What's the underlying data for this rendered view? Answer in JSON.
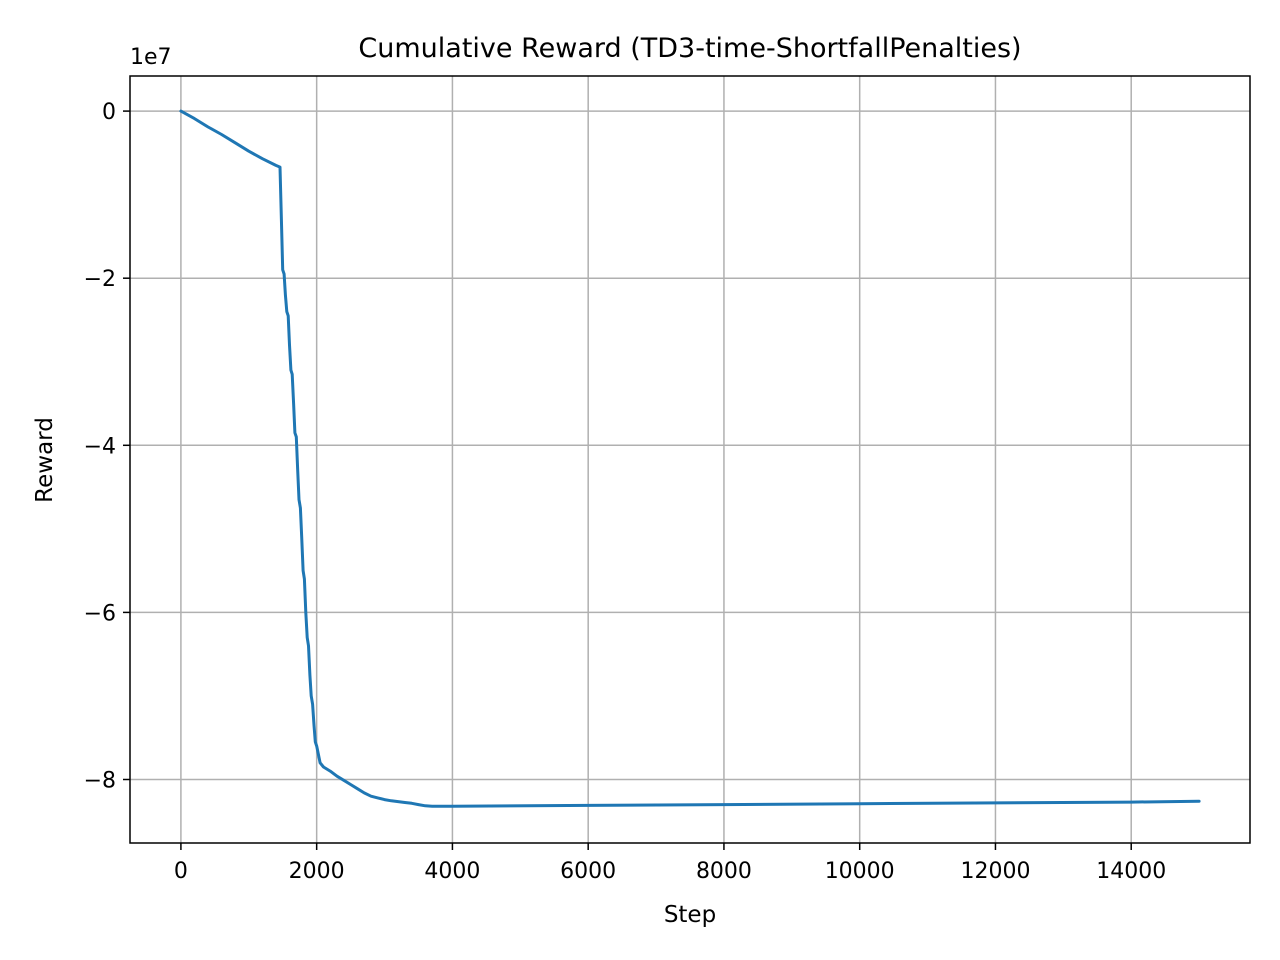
{
  "chart_data": {
    "type": "line",
    "title": "Cumulative Reward (TD3-time-ShortfallPenalties)",
    "xlabel": "Step",
    "ylabel": "Reward",
    "y_offset_label": "1e7",
    "y_scale_factor": 10000000,
    "xlim": [
      -750,
      15750
    ],
    "ylim": [
      -87600000,
      4200000
    ],
    "x_ticks": [
      0,
      2000,
      4000,
      6000,
      8000,
      10000,
      12000,
      14000
    ],
    "x_tick_labels": [
      "0",
      "2000",
      "4000",
      "6000",
      "8000",
      "10000",
      "12000",
      "14000"
    ],
    "y_ticks": [
      0,
      -20000000,
      -40000000,
      -60000000,
      -80000000
    ],
    "y_tick_labels": [
      "0",
      "−2",
      "−4",
      "−6",
      "−8"
    ],
    "grid": true,
    "legend": "none",
    "colors": {
      "series": "#1f77b4"
    },
    "series": [
      {
        "x": [
          0,
          200,
          400,
          600,
          800,
          1000,
          1200,
          1400,
          1460,
          1480,
          1500,
          1520,
          1540,
          1560,
          1580,
          1600,
          1620,
          1640,
          1660,
          1680,
          1700,
          1720,
          1740,
          1760,
          1780,
          1800,
          1820,
          1840,
          1860,
          1880,
          1900,
          1920,
          1940,
          1960,
          1980,
          2000,
          2050,
          2100,
          2200,
          2300,
          2400,
          2500,
          2600,
          2700,
          2800,
          2900,
          3000,
          3100,
          3200,
          3300,
          3400,
          3500,
          3600,
          3700,
          4000,
          6000,
          8000,
          10000,
          12000,
          14000,
          15000
        ],
        "y": [
          0,
          -900000,
          -1900000,
          -2800000,
          -3800000,
          -4800000,
          -5700000,
          -6500000,
          -6700000,
          -13000000,
          -19000000,
          -19500000,
          -22000000,
          -24000000,
          -24500000,
          -28000000,
          -31000000,
          -31500000,
          -35000000,
          -38500000,
          -39000000,
          -43000000,
          -46500000,
          -47500000,
          -51000000,
          -55000000,
          -56000000,
          -60000000,
          -63000000,
          -64000000,
          -67500000,
          -70000000,
          -71000000,
          -73500000,
          -75500000,
          -76000000,
          -78000000,
          -78500000,
          -79000000,
          -79600000,
          -80100000,
          -80600000,
          -81100000,
          -81600000,
          -82000000,
          -82200000,
          -82400000,
          -82550000,
          -82650000,
          -82750000,
          -82850000,
          -83000000,
          -83150000,
          -83200000,
          -83200000,
          -83100000,
          -83000000,
          -82900000,
          -82800000,
          -82700000,
          -82600000
        ]
      }
    ]
  }
}
